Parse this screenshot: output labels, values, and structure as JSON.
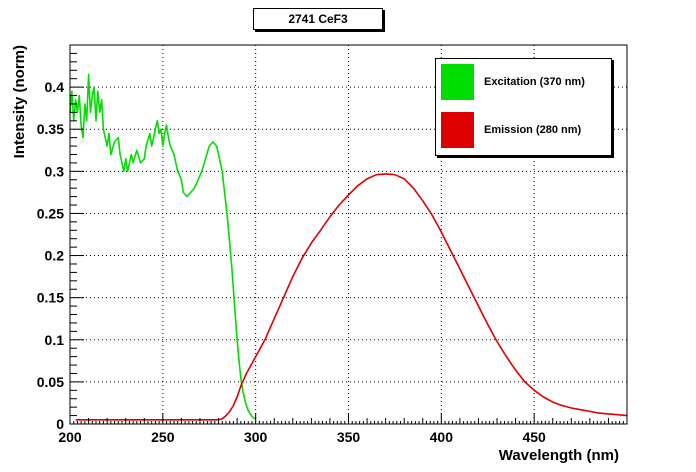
{
  "chart_data": {
    "type": "line",
    "title": "2741 CeF3",
    "xlabel": "Wavelength (nm)",
    "ylabel": "Intensity (norm)",
    "xlim": [
      200,
      500
    ],
    "ylim": [
      0,
      0.45
    ],
    "x_ticks": [
      "200",
      "250",
      "300",
      "350",
      "400",
      "450"
    ],
    "y_ticks": [
      "0",
      "0.05",
      "0.1",
      "0.15",
      "0.2",
      "0.25",
      "0.3",
      "0.35",
      "0.4"
    ],
    "grid": true,
    "legend_position": "top-right",
    "series": [
      {
        "name": "Excitation (370 nm)",
        "color": "#00dd00",
        "points": [
          [
            200,
            0.37
          ],
          [
            201,
            0.395
          ],
          [
            202,
            0.36
          ],
          [
            203,
            0.385
          ],
          [
            204,
            0.37
          ],
          [
            205,
            0.39
          ],
          [
            206,
            0.355
          ],
          [
            207,
            0.34
          ],
          [
            208,
            0.38
          ],
          [
            209,
            0.36
          ],
          [
            210,
            0.415
          ],
          [
            211,
            0.37
          ],
          [
            212,
            0.39
          ],
          [
            213,
            0.4
          ],
          [
            214,
            0.36
          ],
          [
            215,
            0.395
          ],
          [
            216,
            0.37
          ],
          [
            217,
            0.385
          ],
          [
            218,
            0.35
          ],
          [
            220,
            0.33
          ],
          [
            221,
            0.345
          ],
          [
            222,
            0.32
          ],
          [
            224,
            0.335
          ],
          [
            226,
            0.34
          ],
          [
            227,
            0.32
          ],
          [
            228,
            0.31
          ],
          [
            229,
            0.3
          ],
          [
            230,
            0.315
          ],
          [
            231,
            0.3
          ],
          [
            233,
            0.32
          ],
          [
            234,
            0.31
          ],
          [
            236,
            0.325
          ],
          [
            238,
            0.31
          ],
          [
            240,
            0.315
          ],
          [
            241,
            0.33
          ],
          [
            243,
            0.345
          ],
          [
            244,
            0.33
          ],
          [
            246,
            0.35
          ],
          [
            247,
            0.36
          ],
          [
            248,
            0.345
          ],
          [
            249,
            0.35
          ],
          [
            250,
            0.33
          ],
          [
            251,
            0.345
          ],
          [
            252,
            0.355
          ],
          [
            253,
            0.34
          ],
          [
            254,
            0.33
          ],
          [
            256,
            0.32
          ],
          [
            258,
            0.3
          ],
          [
            260,
            0.29
          ],
          [
            261,
            0.275
          ],
          [
            263,
            0.27
          ],
          [
            265,
            0.275
          ],
          [
            267,
            0.28
          ],
          [
            269,
            0.29
          ],
          [
            271,
            0.3
          ],
          [
            273,
            0.315
          ],
          [
            275,
            0.33
          ],
          [
            277,
            0.335
          ],
          [
            279,
            0.33
          ],
          [
            280,
            0.32
          ],
          [
            282,
            0.3
          ],
          [
            283,
            0.28
          ],
          [
            284,
            0.26
          ],
          [
            285,
            0.24
          ],
          [
            286,
            0.215
          ],
          [
            287,
            0.19
          ],
          [
            288,
            0.16
          ],
          [
            289,
            0.13
          ],
          [
            290,
            0.1
          ],
          [
            291,
            0.075
          ],
          [
            292,
            0.055
          ],
          [
            293,
            0.04
          ],
          [
            294,
            0.03
          ],
          [
            295,
            0.022
          ],
          [
            296,
            0.016
          ],
          [
            297,
            0.012
          ],
          [
            298,
            0.009
          ],
          [
            299,
            0.007
          ],
          [
            300,
            0.006
          ]
        ]
      },
      {
        "name": "Emission (280 nm)",
        "color": "#dd0000",
        "points": [
          [
            203,
            0.005
          ],
          [
            280,
            0.005
          ],
          [
            282,
            0.006
          ],
          [
            284,
            0.01
          ],
          [
            286,
            0.015
          ],
          [
            288,
            0.022
          ],
          [
            290,
            0.032
          ],
          [
            292,
            0.045
          ],
          [
            295,
            0.06
          ],
          [
            300,
            0.08
          ],
          [
            305,
            0.1
          ],
          [
            310,
            0.125
          ],
          [
            315,
            0.15
          ],
          [
            320,
            0.175
          ],
          [
            325,
            0.197
          ],
          [
            330,
            0.215
          ],
          [
            335,
            0.23
          ],
          [
            340,
            0.246
          ],
          [
            345,
            0.26
          ],
          [
            350,
            0.272
          ],
          [
            355,
            0.283
          ],
          [
            360,
            0.291
          ],
          [
            365,
            0.296
          ],
          [
            370,
            0.297
          ],
          [
            375,
            0.296
          ],
          [
            380,
            0.291
          ],
          [
            385,
            0.28
          ],
          [
            390,
            0.265
          ],
          [
            395,
            0.248
          ],
          [
            400,
            0.228
          ],
          [
            405,
            0.206
          ],
          [
            410,
            0.184
          ],
          [
            415,
            0.162
          ],
          [
            420,
            0.14
          ],
          [
            425,
            0.118
          ],
          [
            430,
            0.098
          ],
          [
            435,
            0.08
          ],
          [
            440,
            0.064
          ],
          [
            445,
            0.05
          ],
          [
            450,
            0.04
          ],
          [
            455,
            0.032
          ],
          [
            460,
            0.026
          ],
          [
            465,
            0.022
          ],
          [
            470,
            0.019
          ],
          [
            475,
            0.017
          ],
          [
            480,
            0.015
          ],
          [
            485,
            0.013
          ],
          [
            490,
            0.012
          ],
          [
            495,
            0.011
          ],
          [
            500,
            0.01
          ]
        ]
      }
    ]
  }
}
